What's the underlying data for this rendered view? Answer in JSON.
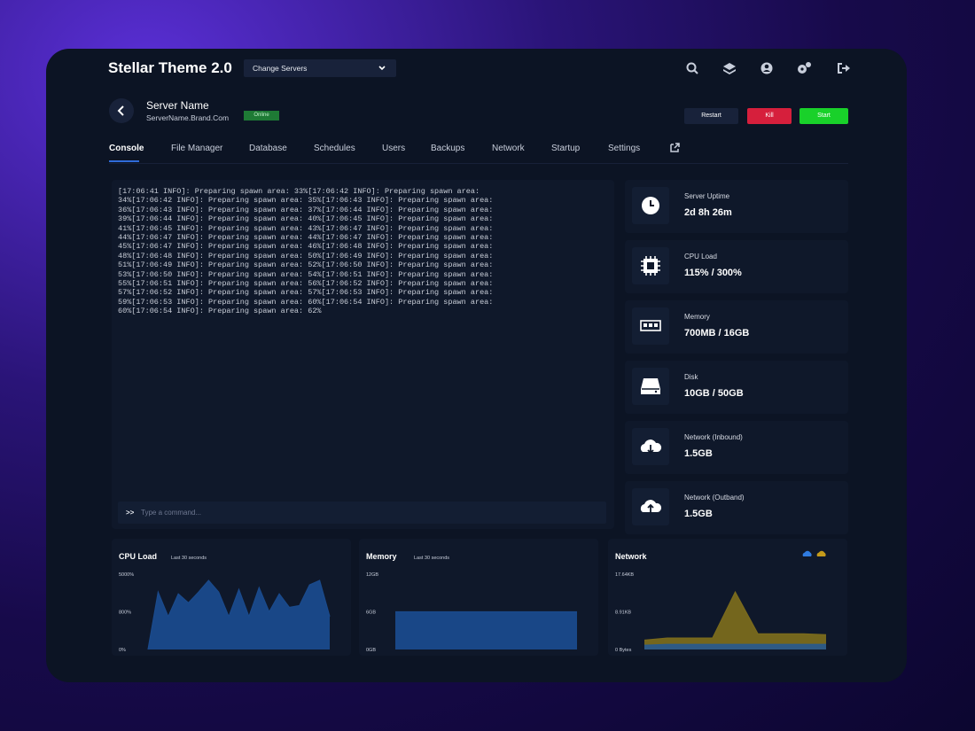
{
  "header": {
    "title": "Stellar Theme 2.0",
    "server_select": "Change Servers"
  },
  "server": {
    "name": "Server Name",
    "host": "ServerName.Brand.Com",
    "status": "Online",
    "actions": [
      "Restart",
      "Kill",
      "Start"
    ]
  },
  "tabs": [
    "Console",
    "File Manager",
    "Database",
    "Schedules",
    "Users",
    "Backups",
    "Network",
    "Startup",
    "Settings"
  ],
  "console": {
    "lines": [
      "[17:06:41 INFO]: Preparing spawn area: 33%[17:06:42 INFO]: Preparing spawn area:",
      "34%[17:06:42 INFO]: Preparing spawn area: 35%[17:06:43 INFO]: Preparing spawn area:",
      "36%[17:06:43 INFO]: Preparing spawn area: 37%[17:06:44 INFO]: Preparing spawn area:",
      "39%[17:06:44 INFO]: Preparing spawn area: 40%[17:06:45 INFO]: Preparing spawn area:",
      "41%[17:06:45 INFO]: Preparing spawn area: 43%[17:06:47 INFO]: Preparing spawn area:",
      "44%[17:06:47 INFO]: Preparing spawn area: 44%[17:06:47 INFO]: Preparing spawn area:",
      "45%[17:06:47 INFO]: Preparing spawn area: 46%[17:06:48 INFO]: Preparing spawn area:",
      "48%[17:06:48 INFO]: Preparing spawn area: 50%[17:06:49 INFO]: Preparing spawn area:",
      "51%[17:06:49 INFO]: Preparing spawn area: 52%[17:06:50 INFO]: Preparing spawn area:",
      "53%[17:06:50 INFO]: Preparing spawn area: 54%[17:06:51 INFO]: Preparing spawn area:",
      "55%[17:06:51 INFO]: Preparing spawn area: 56%[17:06:52 INFO]: Preparing spawn area:",
      "57%[17:06:52 INFO]: Preparing spawn area: 57%[17:06:53 INFO]: Preparing spawn area:",
      "59%[17:06:53 INFO]: Preparing spawn area: 60%[17:06:54 INFO]: Preparing spawn area:",
      "60%[17:06:54 INFO]: Preparing spawn area: 62%"
    ],
    "input_prefix": ">>",
    "placeholder": "Type a command..."
  },
  "stats": [
    {
      "label": "Server Uptime",
      "value": "2d 8h 26m"
    },
    {
      "label": "CPU Load",
      "value": "115% / 300%"
    },
    {
      "label": "Memory",
      "value": "700MB / 16GB"
    },
    {
      "label": "Disk",
      "value": "10GB / 50GB"
    },
    {
      "label": "Network (Inbound)",
      "value": "1.5GB"
    },
    {
      "label": "Network (Outband)",
      "value": "1.5GB"
    }
  ],
  "charts": [
    {
      "type": "area",
      "title": "CPU Load",
      "subtitle": "Last 30 seconds",
      "yticks": [
        {
          "value": 0,
          "label": "0%"
        },
        {
          "value": 800,
          "label": "800%"
        },
        {
          "value": 5000,
          "label": "5000%"
        }
      ],
      "series": [
        {
          "color": "#1a4a8c",
          "values": [
            0,
            3000,
            700,
            2800,
            1800,
            3000,
            4300,
            3000,
            700,
            3300,
            700,
            3500,
            800,
            2800,
            1300,
            1500,
            3800,
            4300,
            700
          ]
        }
      ]
    },
    {
      "type": "area",
      "title": "Memory",
      "subtitle": "Last 30 seconds",
      "yticks": [
        {
          "value": 0,
          "label": "0GB"
        },
        {
          "value": 6,
          "label": "6GB"
        },
        {
          "value": 12,
          "label": "12GB"
        }
      ],
      "series": [
        {
          "color": "#1a4a8c",
          "values": [
            6,
            6,
            6,
            6,
            6,
            6,
            6
          ]
        }
      ]
    },
    {
      "type": "area",
      "title": "Network",
      "yticks": [
        {
          "value": 0,
          "label": "0 Bytes"
        },
        {
          "value": 8.91,
          "label": "8.91KB"
        },
        {
          "value": 17.64,
          "label": "17.64KB"
        }
      ],
      "series": [
        {
          "color": "#7a6a1c",
          "values": [
            2.2,
            2.7,
            2.7,
            2.7,
            13.5,
            3.7,
            3.7,
            3.7,
            3.5
          ]
        },
        {
          "color": "#2a5a8a",
          "values": [
            1,
            1.2,
            1.2,
            1.2,
            1.2,
            1.2,
            1.2,
            1.2,
            1.2
          ]
        }
      ]
    }
  ]
}
